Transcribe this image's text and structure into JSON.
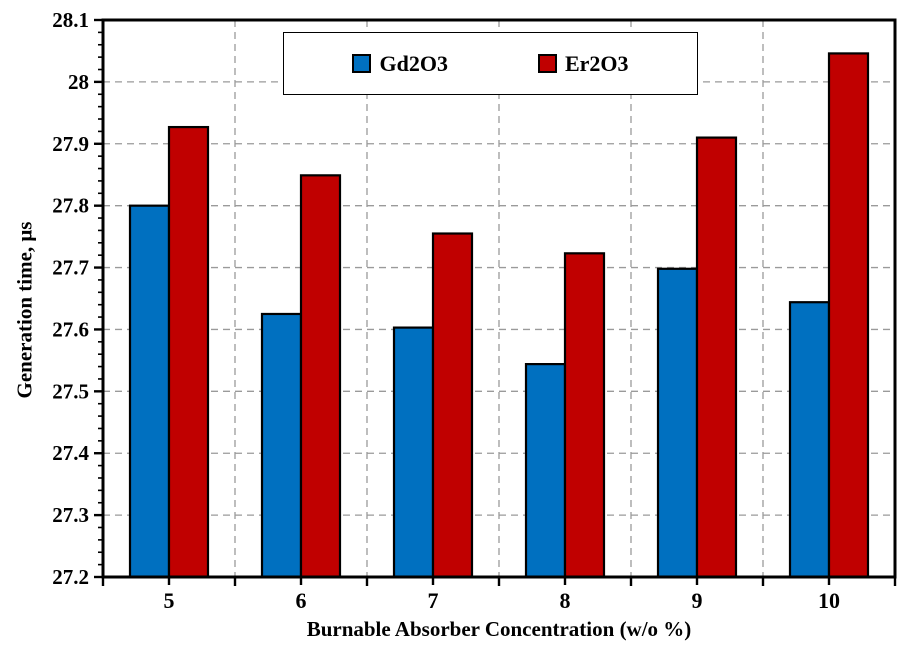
{
  "chart_data": {
    "type": "bar",
    "title": "",
    "xlabel": "Burnable Absorber Concentration (w/o %)",
    "ylabel": "Generation time, μs",
    "categories": [
      "5",
      "6",
      "7",
      "8",
      "9",
      "10"
    ],
    "series": [
      {
        "name": "Gd2O3",
        "color": "#0070C0",
        "values": [
          27.8,
          27.625,
          27.603,
          27.544,
          27.698,
          27.644
        ]
      },
      {
        "name": "Er2O3",
        "color": "#C00000",
        "values": [
          27.927,
          27.849,
          27.755,
          27.723,
          27.91,
          28.046
        ]
      }
    ],
    "ylim": [
      27.2,
      28.1
    ],
    "ytick_step": 0.1,
    "yminor_step": 0.02,
    "ytick_labels": [
      "27.2",
      "27.3",
      "27.4",
      "27.5",
      "27.6",
      "27.7",
      "27.8",
      "27.9",
      "28",
      "28.1"
    ],
    "grid": {
      "horizontal": true,
      "vertical": true,
      "style": "dashed",
      "color": "#9a9a9a"
    },
    "legend": {
      "position": "top-center",
      "entries": [
        "Gd2O3",
        "Er2O3"
      ]
    },
    "bar_outline_color": "#000000",
    "axis_color": "#000000",
    "background_color": "#ffffff"
  }
}
